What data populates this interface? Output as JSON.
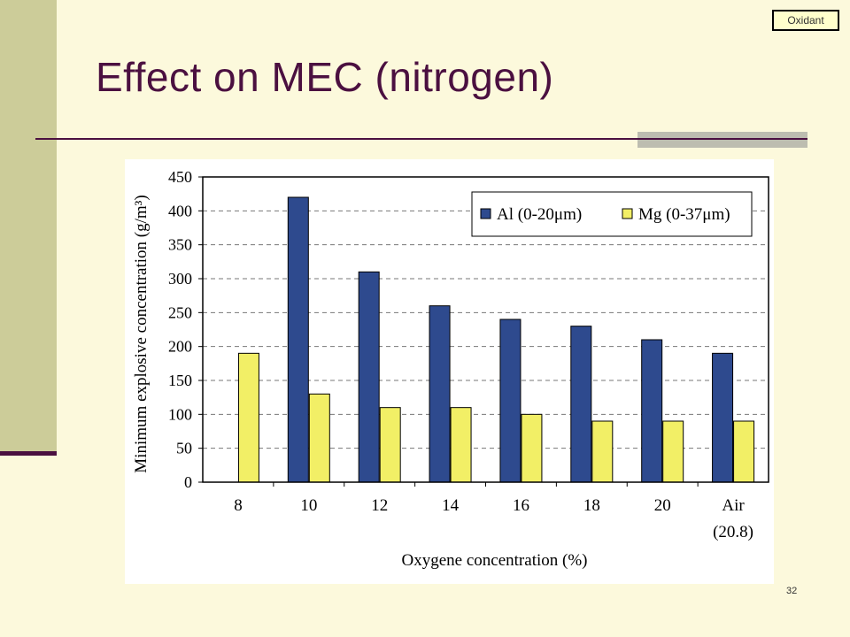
{
  "slide": {
    "title": "Effect on MEC (nitrogen)",
    "oxidant_label": "Oxidant",
    "page_number": "32"
  },
  "colors": {
    "background": "#fcf9dc",
    "accent_bar": "#cccc99",
    "title": "#4b1040",
    "al_bar": "#2e4a8e",
    "mg_bar": "#f2ef66"
  },
  "chart_data": {
    "type": "bar",
    "title": "",
    "xlabel": "Oxygene concentration (%)",
    "ylabel": "Minimum explosive concentration (g/m³)",
    "ylim": [
      0,
      450
    ],
    "yticks": [
      0,
      50,
      100,
      150,
      200,
      250,
      300,
      350,
      400,
      450
    ],
    "grid": "horizontal dashed",
    "legend_position": "top-right",
    "categories": [
      "8",
      "10",
      "12",
      "14",
      "16",
      "18",
      "20",
      "Air"
    ],
    "category_sublabels": [
      "",
      "",
      "",
      "",
      "",
      "",
      "",
      "(20.8)"
    ],
    "series": [
      {
        "name": "Al (0-20μm)",
        "color": "#2e4a8e",
        "values": [
          null,
          420,
          310,
          260,
          240,
          230,
          210,
          190
        ]
      },
      {
        "name": "Mg (0-37μm)",
        "color": "#f2ef66",
        "values": [
          190,
          130,
          110,
          110,
          100,
          90,
          90,
          90
        ]
      }
    ]
  }
}
